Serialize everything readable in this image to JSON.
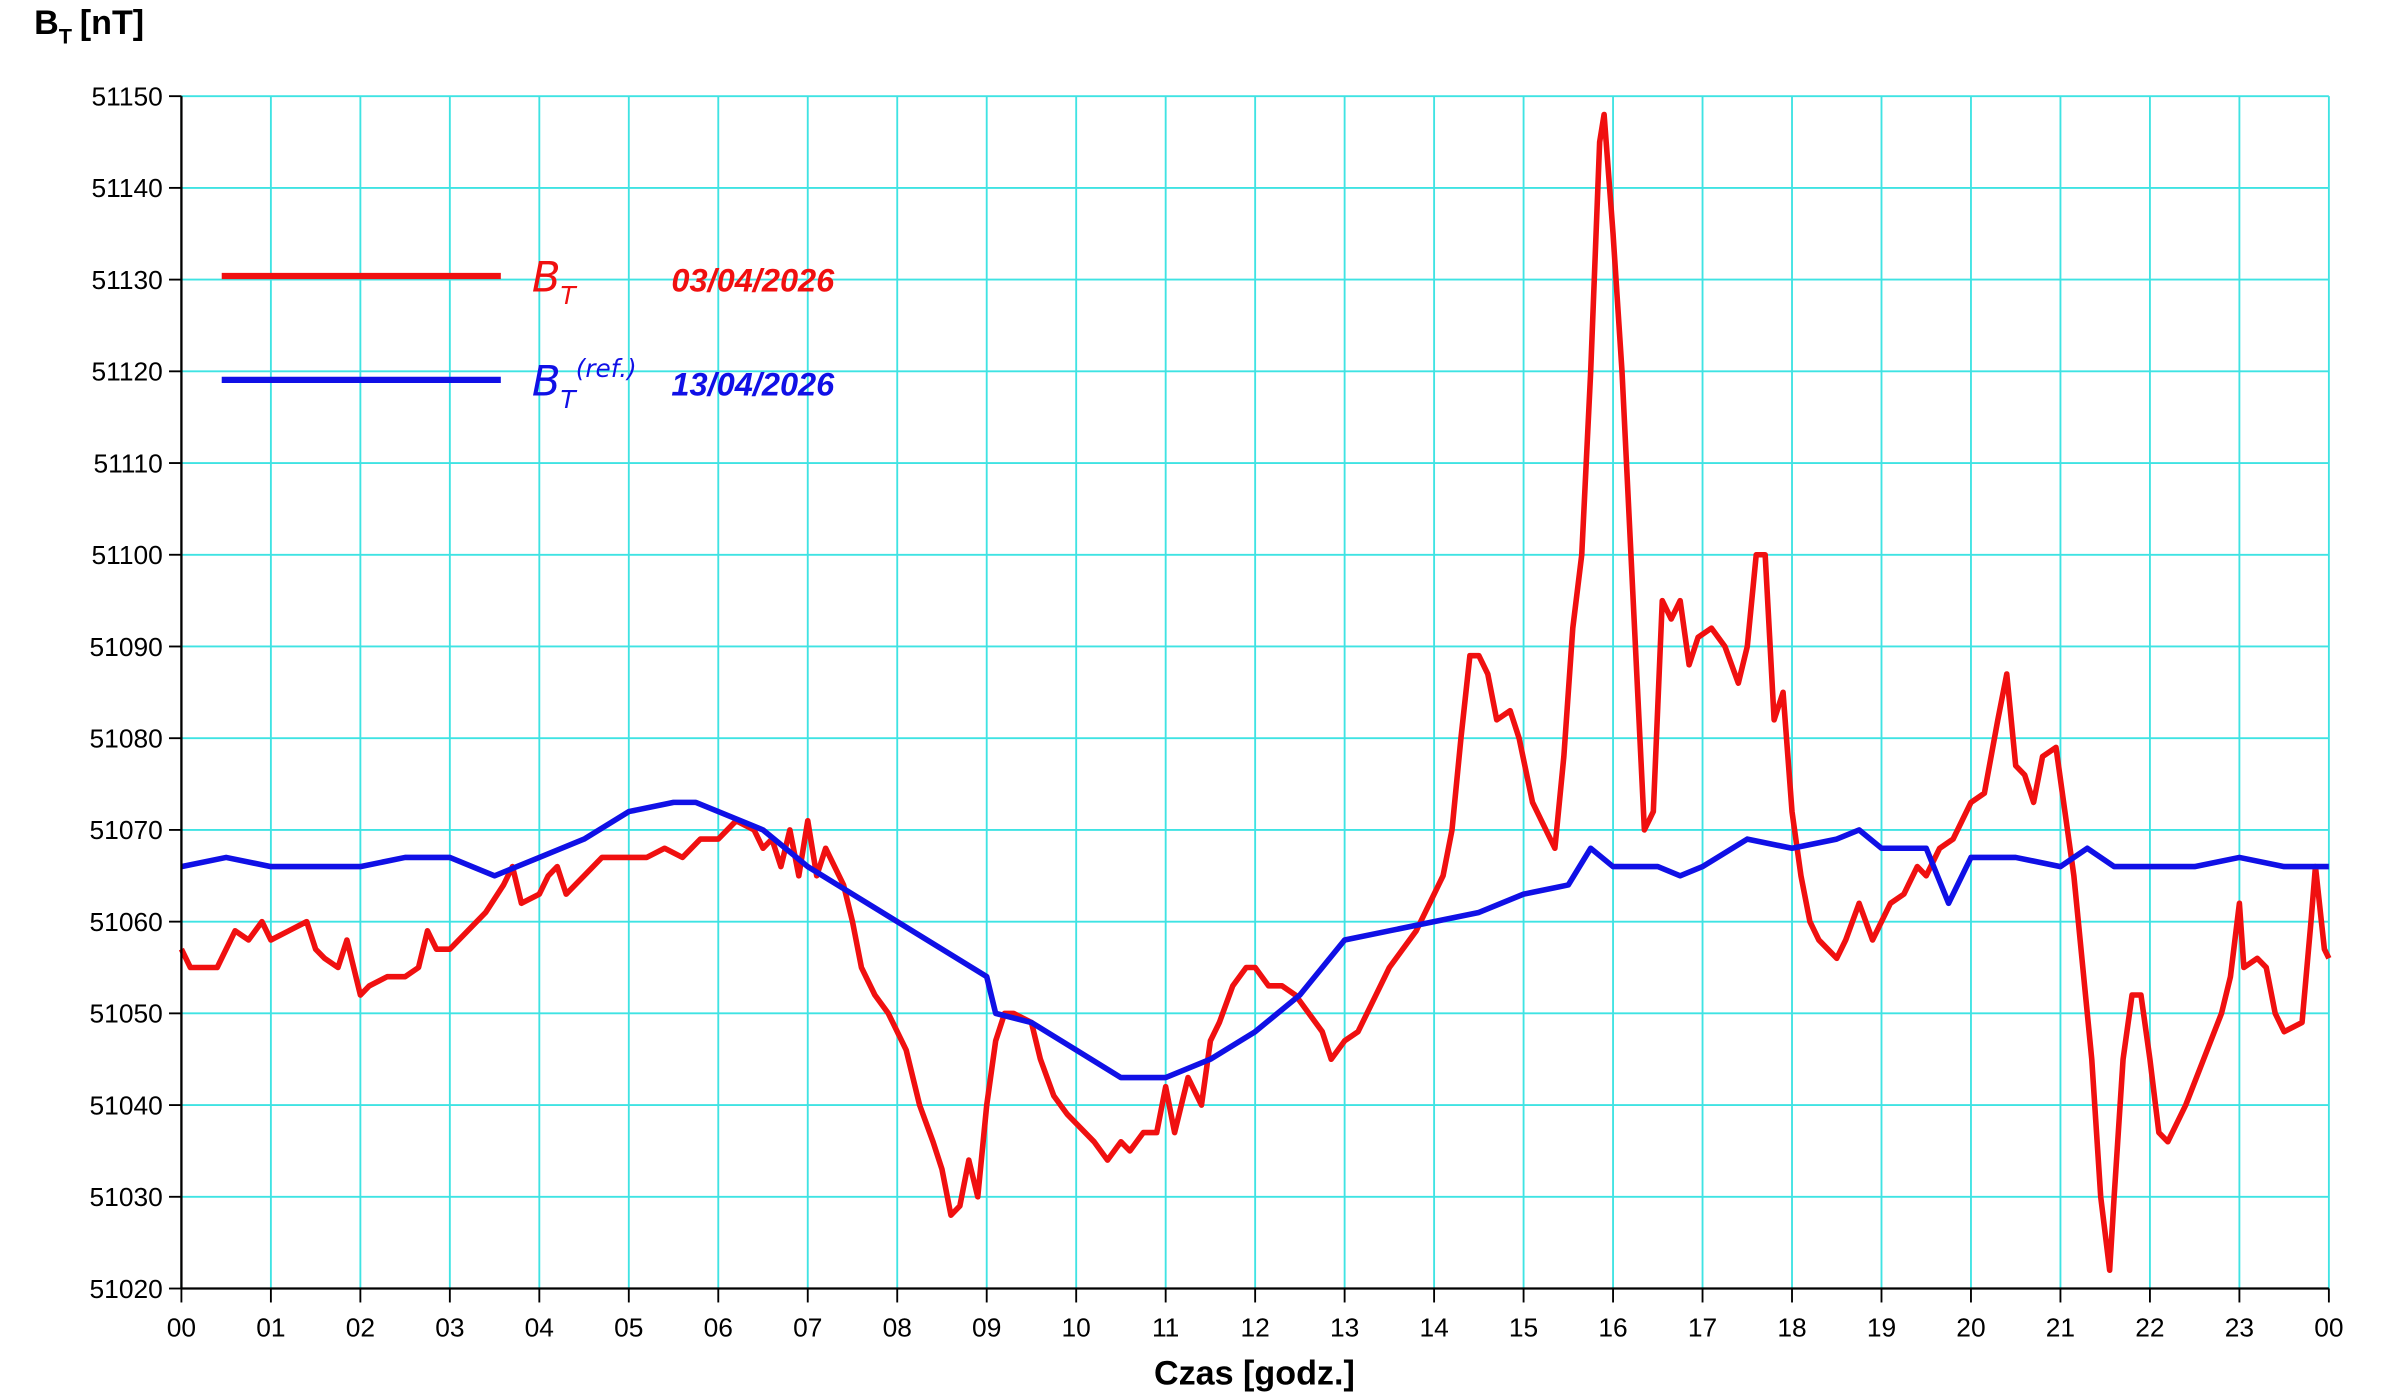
{
  "chart_data": {
    "type": "line",
    "y_label": "B",
    "y_label_sub": "T",
    "y_label_unit": "[nT]",
    "x_label": "Czas [godz.]",
    "xlim": [
      0,
      24
    ],
    "xticks": [
      {
        "value": 0,
        "label": "00"
      },
      {
        "value": 1,
        "label": "01"
      },
      {
        "value": 2,
        "label": "02"
      },
      {
        "value": 3,
        "label": "03"
      },
      {
        "value": 4,
        "label": "04"
      },
      {
        "value": 5,
        "label": "05"
      },
      {
        "value": 6,
        "label": "06"
      },
      {
        "value": 7,
        "label": "07"
      },
      {
        "value": 8,
        "label": "08"
      },
      {
        "value": 9,
        "label": "09"
      },
      {
        "value": 10,
        "label": "10"
      },
      {
        "value": 11,
        "label": "11"
      },
      {
        "value": 12,
        "label": "12"
      },
      {
        "value": 13,
        "label": "13"
      },
      {
        "value": 14,
        "label": "14"
      },
      {
        "value": 15,
        "label": "15"
      },
      {
        "value": 16,
        "label": "16"
      },
      {
        "value": 17,
        "label": "17"
      },
      {
        "value": 18,
        "label": "18"
      },
      {
        "value": 19,
        "label": "19"
      },
      {
        "value": 20,
        "label": "20"
      },
      {
        "value": 21,
        "label": "21"
      },
      {
        "value": 22,
        "label": "22"
      },
      {
        "value": 23,
        "label": "23"
      },
      {
        "value": 24,
        "label": "00"
      }
    ],
    "ylim": [
      51020,
      51150
    ],
    "yticks": [
      51020,
      51030,
      51040,
      51050,
      51060,
      51070,
      51080,
      51090,
      51100,
      51110,
      51120,
      51130,
      51140,
      51150
    ],
    "grid": true,
    "grid_color": "#3fe3e3",
    "series": [
      {
        "name": "B",
        "name_sub": "T",
        "date": "03/04/2026",
        "color": "#f01010",
        "x": [
          0.0,
          0.1,
          0.3,
          0.4,
          0.5,
          0.6,
          0.75,
          0.9,
          1.0,
          1.2,
          1.4,
          1.5,
          1.6,
          1.75,
          1.85,
          2.0,
          2.1,
          2.3,
          2.5,
          2.65,
          2.75,
          2.85,
          3.0,
          3.2,
          3.4,
          3.6,
          3.7,
          3.8,
          4.0,
          4.1,
          4.2,
          4.3,
          4.5,
          4.7,
          5.0,
          5.2,
          5.4,
          5.6,
          5.8,
          6.0,
          6.2,
          6.4,
          6.5,
          6.6,
          6.7,
          6.8,
          6.9,
          7.0,
          7.1,
          7.2,
          7.3,
          7.4,
          7.5,
          7.6,
          7.75,
          7.9,
          8.0,
          8.1,
          8.25,
          8.4,
          8.5,
          8.6,
          8.7,
          8.8,
          8.9,
          9.0,
          9.1,
          9.2,
          9.3,
          9.5,
          9.6,
          9.75,
          9.9,
          10.0,
          10.2,
          10.35,
          10.5,
          10.6,
          10.75,
          10.9,
          11.0,
          11.1,
          11.25,
          11.4,
          11.5,
          11.6,
          11.75,
          11.9,
          12.0,
          12.15,
          12.3,
          12.45,
          12.6,
          12.75,
          12.85,
          13.0,
          13.15,
          13.3,
          13.5,
          13.65,
          13.8,
          14.0,
          14.1,
          14.2,
          14.3,
          14.4,
          14.5,
          14.6,
          14.7,
          14.85,
          14.95,
          15.1,
          15.25,
          15.35,
          15.45,
          15.55,
          15.65,
          15.75,
          15.85,
          15.9,
          16.0,
          16.1,
          16.2,
          16.3,
          16.35,
          16.45,
          16.55,
          16.65,
          16.75,
          16.85,
          16.95,
          17.1,
          17.25,
          17.4,
          17.5,
          17.6,
          17.7,
          17.8,
          17.9,
          18.0,
          18.1,
          18.2,
          18.3,
          18.5,
          18.6,
          18.75,
          18.9,
          19.0,
          19.1,
          19.25,
          19.4,
          19.5,
          19.65,
          19.8,
          20.0,
          20.15,
          20.3,
          20.4,
          20.5,
          20.6,
          20.7,
          20.8,
          20.95,
          21.05,
          21.15,
          21.25,
          21.35,
          21.45,
          21.55,
          21.6,
          21.7,
          21.8,
          21.9,
          22.0,
          22.1,
          22.2,
          22.4,
          22.6,
          22.8,
          22.9,
          23.0,
          23.05,
          23.2,
          23.3,
          23.4,
          23.5,
          23.7,
          23.8,
          23.85,
          23.95,
          24.0
        ],
        "values": [
          51057,
          51055,
          51055,
          51055,
          51057,
          51059,
          51058,
          51060,
          51058,
          51059,
          51060,
          51057,
          51056,
          51055,
          51058,
          51052,
          51053,
          51054,
          51054,
          51055,
          51059,
          51057,
          51057,
          51059,
          51061,
          51064,
          51066,
          51062,
          51063,
          51065,
          51066,
          51063,
          51065,
          51067,
          51067,
          51067,
          51068,
          51067,
          51069,
          51069,
          51071,
          51070,
          51068,
          51069,
          51066,
          51070,
          51065,
          51071,
          51065,
          51068,
          51066,
          51064,
          51060,
          51055,
          51052,
          51050,
          51048,
          51046,
          51040,
          51036,
          51033,
          51028,
          51029,
          51034,
          51030,
          51040,
          51047,
          51050,
          51050,
          51049,
          51045,
          51041,
          51039,
          51038,
          51036,
          51034,
          51036,
          51035,
          51037,
          51037,
          51042,
          51037,
          51043,
          51040,
          51047,
          51049,
          51053,
          51055,
          51055,
          51053,
          51053,
          51052,
          51050,
          51048,
          51045,
          51047,
          51048,
          51051,
          51055,
          51057,
          51059,
          51063,
          51065,
          51070,
          51080,
          51089,
          51089,
          51087,
          51082,
          51083,
          51080,
          51073,
          51070,
          51068,
          51078,
          51092,
          51100,
          51120,
          51145,
          51148,
          51135,
          51120,
          51100,
          51080,
          51070,
          51072,
          51095,
          51093,
          51095,
          51088,
          51091,
          51092,
          51090,
          51086,
          51090,
          51100,
          51100,
          51082,
          51085,
          51072,
          51065,
          51060,
          51058,
          51056,
          51058,
          51062,
          51058,
          51060,
          51062,
          51063,
          51066,
          51065,
          51068,
          51069,
          51073,
          51074,
          51082,
          51087,
          51077,
          51076,
          51073,
          51078,
          51079,
          51072,
          51065,
          51055,
          51045,
          51030,
          51022,
          51030,
          51045,
          51052,
          51052,
          51045,
          51037,
          51036,
          51040,
          51045,
          51050,
          51054,
          51062,
          51055,
          51056,
          51055,
          51050,
          51048,
          51049,
          51060,
          51066,
          51057,
          51056
        ]
      },
      {
        "name": "B",
        "name_sub": "T",
        "name_sup": "(ref.)",
        "date": "13/04/2026",
        "color": "#1010e6",
        "x": [
          0,
          0.5,
          1,
          1.5,
          2,
          2.5,
          3,
          3.5,
          4,
          4.5,
          5,
          5.5,
          5.75,
          6,
          6.5,
          7,
          7.5,
          8,
          8.5,
          9,
          9.1,
          9.5,
          10,
          10.5,
          11,
          11.5,
          12,
          12.5,
          13,
          13.5,
          14,
          14.5,
          15,
          15.5,
          15.75,
          16,
          16.5,
          16.75,
          17,
          17.5,
          18,
          18.5,
          18.75,
          19,
          19.5,
          19.75,
          20,
          20.5,
          21,
          21.3,
          21.6,
          22,
          22.5,
          23,
          23.5,
          24
        ],
        "values": [
          51066,
          51067,
          51066,
          51066,
          51066,
          51067,
          51067,
          51065,
          51067,
          51069,
          51072,
          51073,
          51073,
          51072,
          51070,
          51066,
          51063,
          51060,
          51057,
          51054,
          51050,
          51049,
          51046,
          51043,
          51043,
          51045,
          51048,
          51052,
          51058,
          51059,
          51060,
          51061,
          51063,
          51064,
          51068,
          51066,
          51066,
          51065,
          51066,
          51069,
          51068,
          51069,
          51070,
          51068,
          51068,
          51062,
          51067,
          51067,
          51066,
          51068,
          51066,
          51066,
          51066,
          51067,
          51066,
          51066
        ]
      }
    ]
  }
}
